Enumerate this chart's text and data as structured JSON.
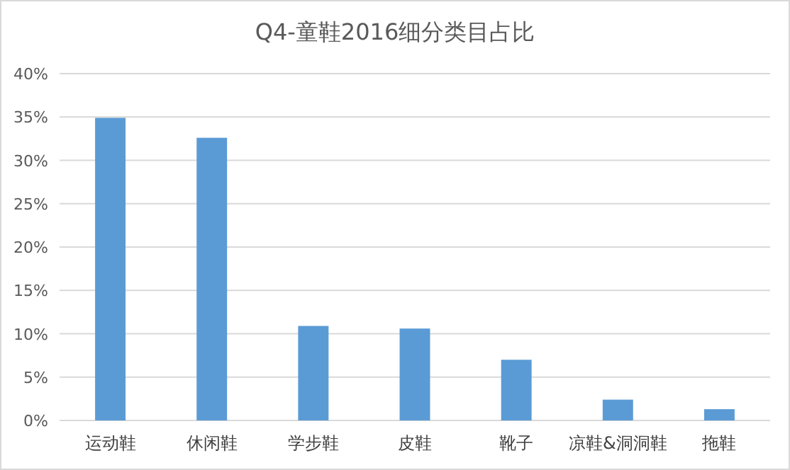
{
  "chart_data": {
    "type": "bar",
    "title": "Q4-童鞋2016细分类目占比",
    "categories": [
      "运动鞋",
      "休闲鞋",
      "学步鞋",
      "皮鞋",
      "靴子",
      "凉鞋&洞洞鞋",
      "拖鞋"
    ],
    "values": [
      34.9,
      32.6,
      10.9,
      10.6,
      7.0,
      2.4,
      1.3
    ],
    "color": "#5b9bd5",
    "ylim": [
      0,
      40
    ],
    "yticks": [
      {
        "value": 0,
        "label": "0%"
      },
      {
        "value": 5,
        "label": "5%"
      },
      {
        "value": 10,
        "label": "10%"
      },
      {
        "value": 15,
        "label": "15%"
      },
      {
        "value": 20,
        "label": "20%"
      },
      {
        "value": 25,
        "label": "25%"
      },
      {
        "value": 30,
        "label": "30%"
      },
      {
        "value": 35,
        "label": "35%"
      },
      {
        "value": 40,
        "label": "40%"
      }
    ],
    "grid": "y"
  }
}
